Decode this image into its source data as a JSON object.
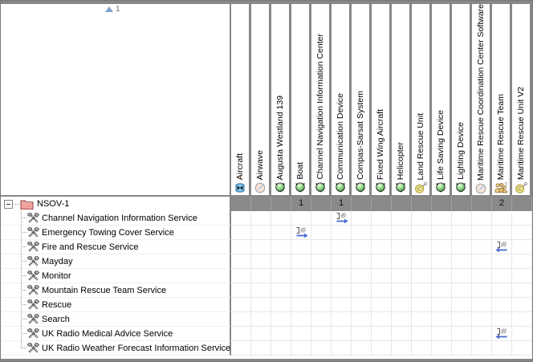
{
  "corner": {
    "sort_indicator_value": "1"
  },
  "columns": [
    {
      "label": "Aircraft",
      "icon": "aircraft-icon",
      "count": ""
    },
    {
      "label": "Airwave",
      "icon": "dial-icon",
      "count": ""
    },
    {
      "label": "Augusta Westland 139",
      "icon": "green-orb-icon",
      "count": ""
    },
    {
      "label": "Boat",
      "icon": "green-orb-icon",
      "count": "1"
    },
    {
      "label": "Channel Navigation Information Center",
      "icon": "green-orb-icon",
      "count": ""
    },
    {
      "label": "Communication Device",
      "icon": "green-orb-icon",
      "count": "1"
    },
    {
      "label": "Compas-Sarsat System",
      "icon": "green-orb-icon",
      "count": ""
    },
    {
      "label": "Fixed Wing Aircraft",
      "icon": "green-orb-icon",
      "count": ""
    },
    {
      "label": "Helicopter",
      "icon": "green-orb-icon",
      "count": ""
    },
    {
      "label": "Land Rescue Unit",
      "icon": "component-icon",
      "count": ""
    },
    {
      "label": "Life Saving Device",
      "icon": "green-orb-icon",
      "count": ""
    },
    {
      "label": "Lighting Device",
      "icon": "green-orb-icon",
      "count": ""
    },
    {
      "label": "Maritime Rescue Coordination Center Software",
      "icon": "dial-icon",
      "count": ""
    },
    {
      "label": "Maritime Rescue Team",
      "icon": "team-icon",
      "count": "2"
    },
    {
      "label": "Maritime Rescue Unit V2",
      "icon": "component-icon",
      "count": ""
    }
  ],
  "tree": {
    "root_label": "NSOV-1",
    "items": [
      "Channel Navigation Information Service",
      "Emergency Towing Cover Service",
      "Fire and Rescue Service",
      "Mayday",
      "Monitor",
      "Mountain Rescue Team Service",
      "Rescue",
      "Search",
      "UK Radio Medical Advice Service",
      "UK Radio Weather Forecast Information Service"
    ]
  },
  "relationships": [
    {
      "row": 0,
      "col": 5,
      "direction": "right"
    },
    {
      "row": 1,
      "col": 3,
      "direction": "right"
    },
    {
      "row": 2,
      "col": 13,
      "direction": "left"
    },
    {
      "row": 8,
      "col": 13,
      "direction": "left"
    }
  ],
  "colors": {
    "chrome_gray": "#878787",
    "group_band": "#8a8a8a",
    "grid_line": "#e7e7e7",
    "relationship_arrow": "#4b69cf",
    "folder": "#f2a3a0",
    "orb_green": "#8ed487"
  }
}
